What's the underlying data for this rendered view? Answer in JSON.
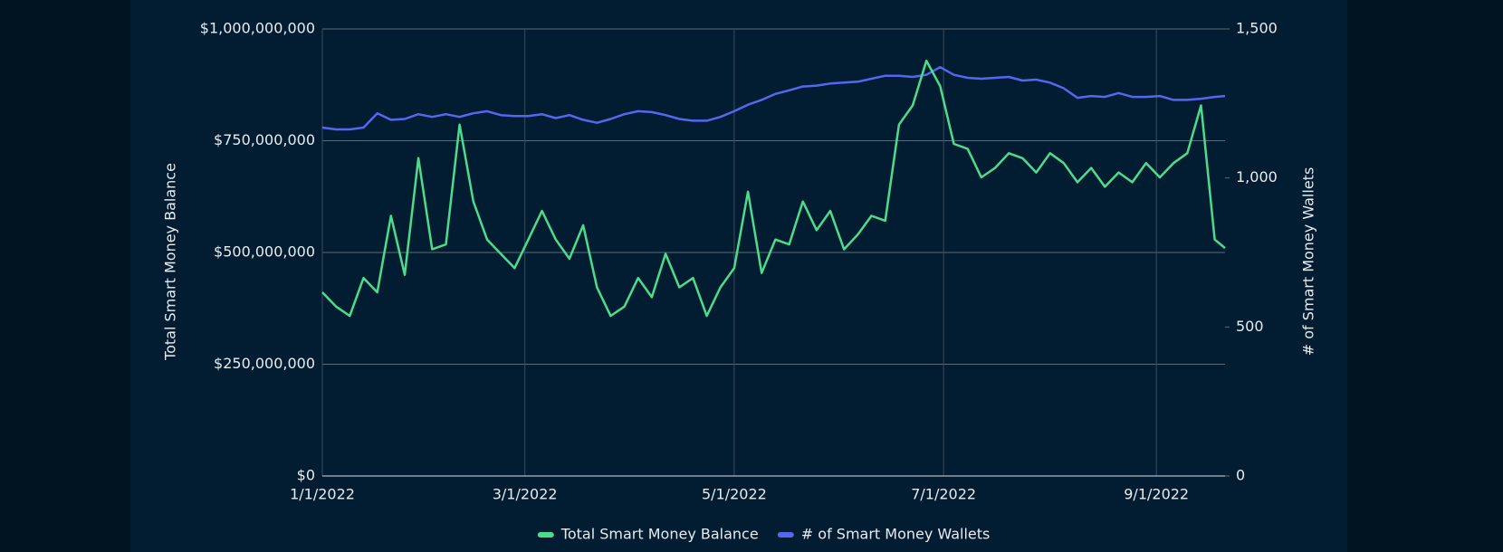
{
  "chart_data": {
    "type": "line",
    "ylabel": "Total Smart Money Balance",
    "y2label": "# of Smart Money Wallets",
    "x": [
      "2022-01-01",
      "2022-01-05",
      "2022-01-09",
      "2022-01-13",
      "2022-01-17",
      "2022-01-21",
      "2022-01-25",
      "2022-01-29",
      "2022-02-02",
      "2022-02-06",
      "2022-02-10",
      "2022-02-14",
      "2022-02-18",
      "2022-02-22",
      "2022-02-26",
      "2022-03-02",
      "2022-03-06",
      "2022-03-10",
      "2022-03-14",
      "2022-03-18",
      "2022-03-22",
      "2022-03-26",
      "2022-03-30",
      "2022-04-03",
      "2022-04-07",
      "2022-04-11",
      "2022-04-15",
      "2022-04-19",
      "2022-04-23",
      "2022-04-27",
      "2022-05-01",
      "2022-05-05",
      "2022-05-09",
      "2022-05-13",
      "2022-05-17",
      "2022-05-21",
      "2022-05-25",
      "2022-05-29",
      "2022-06-02",
      "2022-06-06",
      "2022-06-10",
      "2022-06-14",
      "2022-06-18",
      "2022-06-22",
      "2022-06-26",
      "2022-06-30",
      "2022-07-04",
      "2022-07-08",
      "2022-07-12",
      "2022-07-16",
      "2022-07-20",
      "2022-07-24",
      "2022-07-28",
      "2022-08-01",
      "2022-08-05",
      "2022-08-09",
      "2022-08-13",
      "2022-08-17",
      "2022-08-21",
      "2022-08-25",
      "2022-08-29",
      "2022-09-02",
      "2022-09-06",
      "2022-09-10",
      "2022-09-14",
      "2022-09-18",
      "2022-09-21"
    ],
    "series": [
      {
        "name": "Total Smart Money Balance",
        "color": "#4cdc8b",
        "values": [
          411000000,
          379000000,
          358000000,
          443000000,
          411000000,
          582000000,
          450000000,
          711000000,
          507000000,
          518000000,
          786000000,
          614000000,
          529000000,
          497000000,
          465000000,
          529000000,
          593000000,
          529000000,
          486000000,
          561000000,
          422000000,
          358000000,
          379000000,
          443000000,
          400000000,
          497000000,
          422000000,
          443000000,
          358000000,
          422000000,
          465000000,
          636000000,
          454000000,
          529000000,
          518000000,
          614000000,
          550000000,
          593000000,
          507000000,
          540000000,
          582000000,
          571000000,
          786000000,
          829000000,
          929000000,
          872000000,
          743000000,
          732000000,
          668000000,
          689000000,
          722000000,
          711000000,
          679000000,
          722000000,
          700000000,
          657000000,
          689000000,
          647000000,
          679000000,
          657000000,
          700000000,
          668000000,
          700000000,
          722000000,
          829000000,
          529000000,
          510000000
        ]
      },
      {
        "name": "# of Smart Money Wallets",
        "color": "#5468ef",
        "axis": "y2",
        "values": [
          1169,
          1163,
          1163,
          1169,
          1217,
          1195,
          1198,
          1214,
          1205,
          1214,
          1205,
          1217,
          1224,
          1211,
          1208,
          1208,
          1214,
          1201,
          1211,
          1195,
          1185,
          1198,
          1214,
          1224,
          1221,
          1211,
          1198,
          1192,
          1192,
          1205,
          1224,
          1246,
          1262,
          1282,
          1294,
          1307,
          1310,
          1317,
          1320,
          1323,
          1333,
          1343,
          1343,
          1339,
          1346,
          1372,
          1346,
          1336,
          1333,
          1336,
          1339,
          1327,
          1330,
          1320,
          1301,
          1269,
          1275,
          1272,
          1285,
          1272,
          1272,
          1275,
          1262,
          1262,
          1266,
          1272,
          1275
        ]
      }
    ],
    "xlim": [
      "2022-01-01",
      "2022-09-21"
    ],
    "xticks": [
      {
        "value": "2022-01-01",
        "label": "1/1/2022"
      },
      {
        "value": "2022-03-01",
        "label": "3/1/2022"
      },
      {
        "value": "2022-05-01",
        "label": "5/1/2022"
      },
      {
        "value": "2022-07-01",
        "label": "7/1/2022"
      },
      {
        "value": "2022-09-01",
        "label": "9/1/2022"
      }
    ],
    "ylim": [
      0,
      1000000000
    ],
    "yticks": [
      {
        "value": 0,
        "label": "$0"
      },
      {
        "value": 250000000,
        "label": "$250,000,000"
      },
      {
        "value": 500000000,
        "label": "$500,000,000"
      },
      {
        "value": 750000000,
        "label": "$750,000,000"
      },
      {
        "value": 1000000000,
        "label": "$1,000,000,000"
      }
    ],
    "y2lim": [
      0,
      1500
    ],
    "y2ticks": [
      0,
      500,
      {
        "value": 1000,
        "label": "1,000"
      },
      {
        "value": 1500,
        "label": "1,500"
      }
    ],
    "grid": true,
    "legend": "bottom"
  }
}
